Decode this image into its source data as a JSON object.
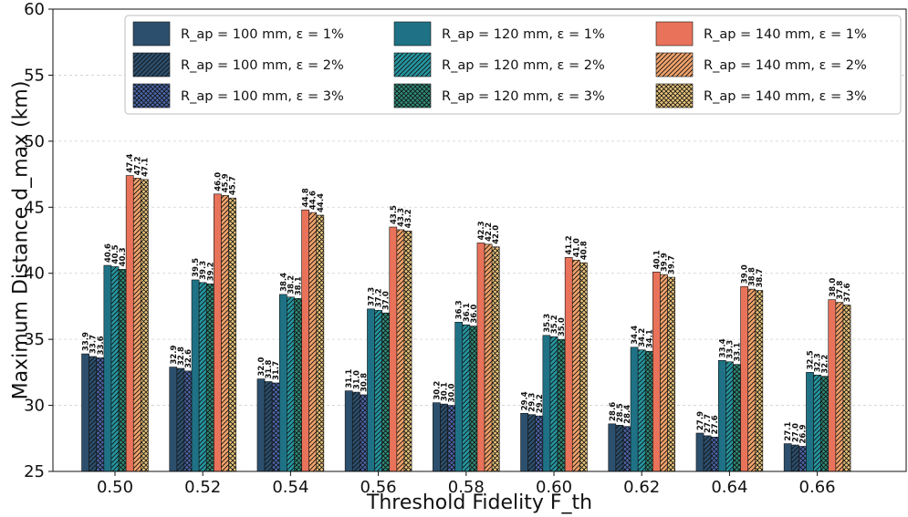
{
  "chart_data": {
    "type": "bar",
    "title": "",
    "xlabel": "Threshold Fidelity F_th",
    "ylabel": "Maximum Distance d_max (km)",
    "ylim": [
      25,
      60
    ],
    "yticks": [
      25,
      30,
      35,
      40,
      45,
      50,
      55,
      60
    ],
    "grid": "horizontal",
    "legend_position": "top-right",
    "categories": [
      "0.50",
      "0.52",
      "0.54",
      "0.56",
      "0.58",
      "0.60",
      "0.62",
      "0.64",
      "0.66"
    ],
    "series": [
      {
        "name": "R_ap = 100 mm, ε = 1%",
        "color": "#2c4f6d",
        "pattern": "solid",
        "labels": [
          "33.9",
          "32.9",
          "32.0",
          "31.1",
          "30.2",
          "29.4",
          "28.6",
          "27.9",
          "27.1"
        ],
        "values": [
          33.9,
          32.9,
          32.0,
          31.1,
          30.2,
          29.4,
          28.6,
          27.9,
          27.1
        ]
      },
      {
        "name": "R_ap = 100 mm, ε = 2%",
        "color": "#2c4f6d",
        "pattern": "diag",
        "labels": [
          "33.7",
          "32.8",
          "31.8",
          "31.0",
          "30.1",
          "29.3",
          "28.5",
          "27.7",
          "27.0"
        ],
        "values": [
          33.7,
          32.8,
          31.8,
          31.0,
          30.1,
          29.3,
          28.5,
          27.7,
          27.0
        ]
      },
      {
        "name": "R_ap = 100 mm, ε = 3%",
        "color": "#4a66a8",
        "pattern": "cross",
        "labels": [
          "33.6",
          "32.6",
          "31.7",
          "30.8",
          "30.0",
          "29.2",
          "28.4",
          "27.6",
          "26.9"
        ],
        "values": [
          33.6,
          32.6,
          31.7,
          30.8,
          30.0,
          29.2,
          28.4,
          27.6,
          26.9
        ]
      },
      {
        "name": "R_ap = 120 mm, ε = 1%",
        "color": "#1f7285",
        "pattern": "solid",
        "labels": [
          "40.6",
          "39.5",
          "38.4",
          "37.3",
          "36.3",
          "35.3",
          "34.4",
          "33.4",
          "32.5"
        ],
        "values": [
          40.6,
          39.5,
          38.4,
          37.3,
          36.3,
          35.3,
          34.4,
          33.4,
          32.5
        ]
      },
      {
        "name": "R_ap = 120 mm, ε = 2%",
        "color": "#2596a0",
        "pattern": "diag",
        "labels": [
          "40.5",
          "39.3",
          "38.2",
          "37.2",
          "36.1",
          "35.2",
          "34.2",
          "33.3",
          "32.3"
        ],
        "values": [
          40.5,
          39.3,
          38.2,
          37.2,
          36.1,
          35.2,
          34.2,
          33.3,
          32.3
        ]
      },
      {
        "name": "R_ap = 120 mm, ε = 3%",
        "color": "#2f8c78",
        "pattern": "cross",
        "labels": [
          "40.3",
          "39.2",
          "38.1",
          "37.0",
          "36.0",
          "35.0",
          "34.1",
          "33.1",
          "32.2"
        ],
        "values": [
          40.3,
          39.2,
          38.1,
          37.0,
          36.0,
          35.0,
          34.1,
          33.1,
          32.2
        ]
      },
      {
        "name": "R_ap = 140 mm, ε = 1%",
        "color": "#e8735a",
        "pattern": "solid",
        "labels": [
          "47.4",
          "46.0",
          "44.8",
          "43.5",
          "42.3",
          "41.2",
          "40.1",
          "39.0",
          "38.0"
        ],
        "values": [
          47.4,
          46.0,
          44.8,
          43.5,
          42.3,
          41.2,
          40.1,
          39.0,
          38.0
        ]
      },
      {
        "name": "R_ap = 140 mm, ε = 2%",
        "color": "#f2a36b",
        "pattern": "diag",
        "labels": [
          "47.2",
          "45.9",
          "44.6",
          "43.3",
          "42.2",
          "41.0",
          "39.9",
          "38.8",
          "37.8"
        ],
        "values": [
          47.2,
          45.9,
          44.6,
          43.3,
          42.2,
          41.0,
          39.9,
          38.8,
          37.8
        ]
      },
      {
        "name": "R_ap = 140 mm, ε = 3%",
        "color": "#e9c47a",
        "pattern": "cross",
        "labels": [
          "47.1",
          "45.7",
          "44.4",
          "43.2",
          "42.0",
          "40.8",
          "39.7",
          "38.7",
          "37.6"
        ],
        "values": [
          47.1,
          45.7,
          44.4,
          43.2,
          42.0,
          40.8,
          39.7,
          38.7,
          37.6
        ]
      }
    ]
  }
}
